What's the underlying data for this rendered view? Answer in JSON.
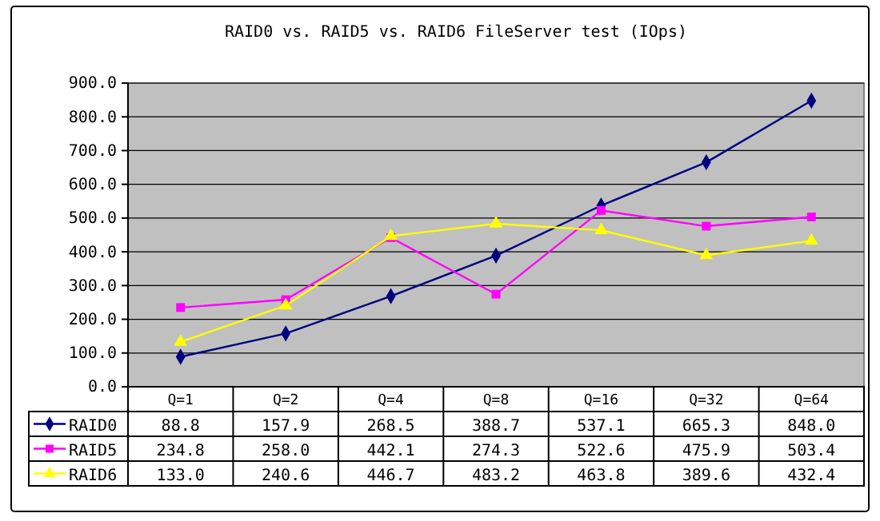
{
  "chart_data": {
    "type": "line",
    "title": "RAID0 vs. RAID5 vs. RAID6 FileServer test (IOps)",
    "categories": [
      "Q=1",
      "Q=2",
      "Q=4",
      "Q=8",
      "Q=16",
      "Q=32",
      "Q=64"
    ],
    "series": [
      {
        "name": "RAID0",
        "color": "#000080",
        "marker": "diamond",
        "values": [
          88.8,
          157.9,
          268.5,
          388.7,
          537.1,
          665.3,
          848.0
        ],
        "value_labels": [
          "88.8",
          "157.9",
          "268.5",
          "388.7",
          "537.1",
          "665.3",
          "848.0"
        ]
      },
      {
        "name": "RAID5",
        "color": "#ff00ff",
        "marker": "square",
        "values": [
          234.8,
          258.0,
          442.1,
          274.3,
          522.6,
          475.9,
          503.4
        ],
        "value_labels": [
          "234.8",
          "258.0",
          "442.1",
          "274.3",
          "522.6",
          "475.9",
          "503.4"
        ]
      },
      {
        "name": "RAID6",
        "color": "#ffff00",
        "marker": "triangle",
        "values": [
          133.0,
          240.6,
          446.7,
          483.2,
          463.8,
          389.6,
          432.4
        ],
        "value_labels": [
          "133.0",
          "240.6",
          "446.7",
          "483.2",
          "463.8",
          "389.6",
          "432.4"
        ]
      }
    ],
    "ylim": [
      0,
      900
    ],
    "yticks": [
      {
        "value": 0,
        "label": "0.0"
      },
      {
        "value": 100,
        "label": "100.0"
      },
      {
        "value": 200,
        "label": "200.0"
      },
      {
        "value": 300,
        "label": "300.0"
      },
      {
        "value": 400,
        "label": "400.0"
      },
      {
        "value": 500,
        "label": "500.0"
      },
      {
        "value": 600,
        "label": "600.0"
      },
      {
        "value": 700,
        "label": "700.0"
      },
      {
        "value": 800,
        "label": "800.0"
      },
      {
        "value": 900,
        "label": "900.0"
      }
    ],
    "grid": "y",
    "legend": "bottom",
    "line_style": "solid"
  }
}
